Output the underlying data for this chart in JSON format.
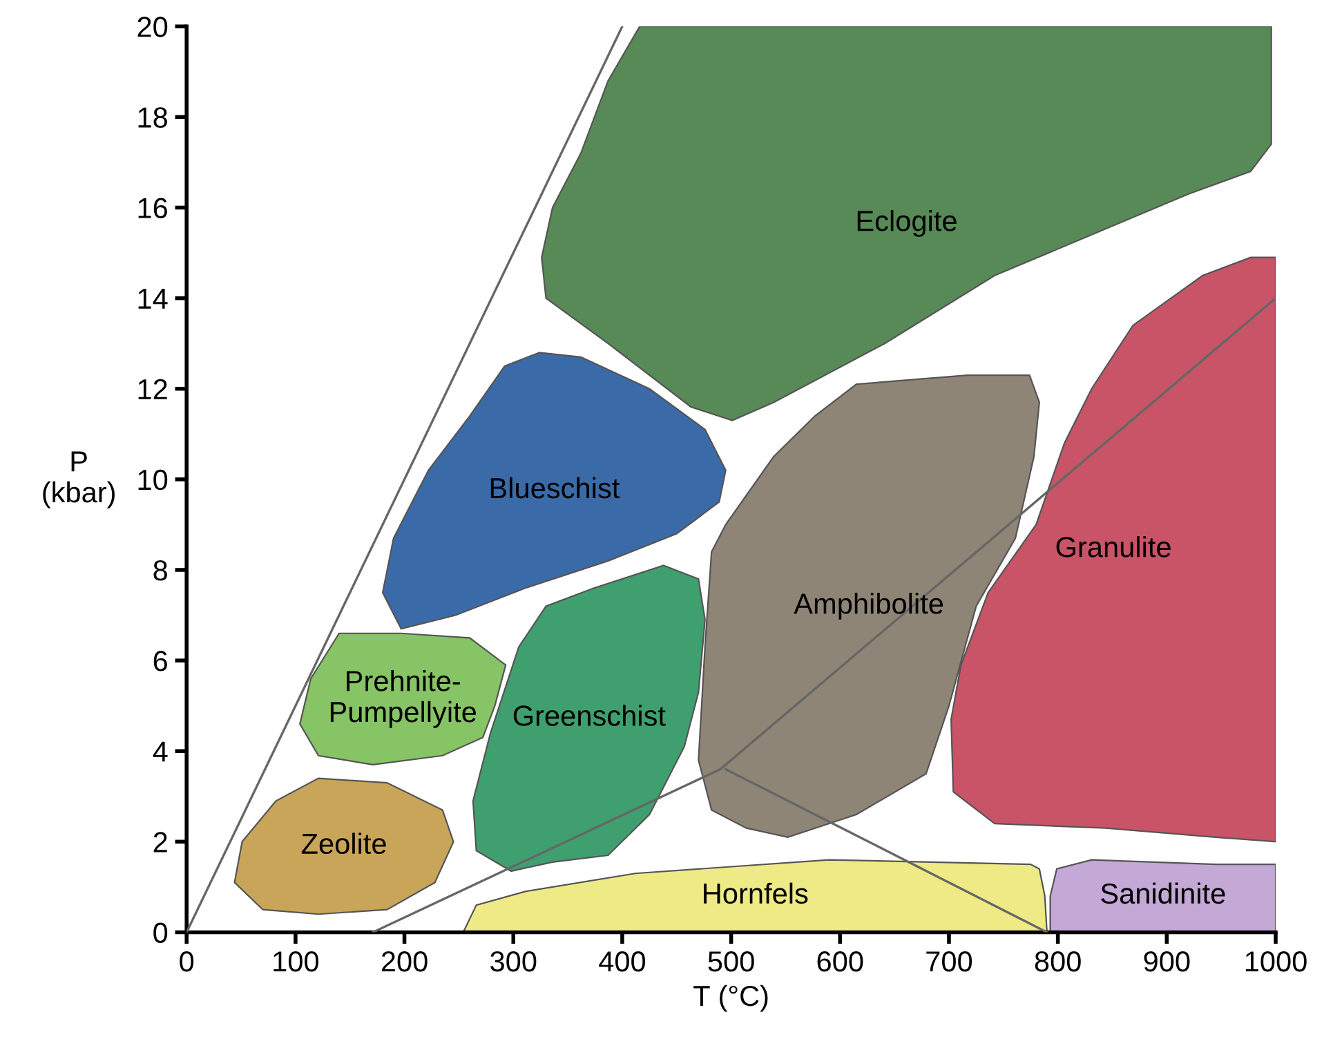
{
  "chart_data": {
    "type": "area",
    "xlabel": "T (°C)",
    "ylabel": "P\n(kbar)",
    "xlim": [
      0,
      1000
    ],
    "ylim": [
      0,
      20
    ],
    "xticks": [
      0,
      100,
      200,
      300,
      400,
      500,
      600,
      700,
      800,
      900,
      1000
    ],
    "yticks": [
      0,
      2,
      4,
      6,
      8,
      10,
      12,
      14,
      16,
      18,
      20
    ],
    "grid": false,
    "legend": false,
    "series": [
      {
        "type": "line",
        "color": "#666666",
        "x": [
          0,
          400
        ],
        "values": [
          0,
          20
        ]
      },
      {
        "type": "line",
        "color": "#666666",
        "x": [
          171,
          490,
          1000
        ],
        "values": [
          0,
          3.6,
          14
        ]
      },
      {
        "type": "line",
        "color": "#666666",
        "x": [
          495,
          790
        ],
        "values": [
          3.6,
          0
        ]
      },
      {
        "name": "Eclogite",
        "color": "#588a57",
        "x": [
          416,
          996,
          996,
          977,
          920,
          831,
          742,
          641,
          539,
          501,
          463,
          387,
          330,
          326,
          336,
          362,
          387
        ],
        "values": [
          20,
          20,
          17.4,
          16.8,
          16.3,
          15.4,
          14.5,
          13.0,
          11.7,
          11.3,
          11.6,
          13.0,
          14.0,
          14.9,
          16.0,
          17.2,
          18.8
        ]
      },
      {
        "name": "Blueschist",
        "color": "#3b6aa8",
        "x": [
          324,
          362,
          425,
          476,
          495,
          489,
          450,
          387,
          311,
          247,
          197,
          180,
          190,
          222,
          260,
          292
        ],
        "values": [
          12.8,
          12.7,
          12.0,
          11.1,
          10.2,
          9.5,
          8.8,
          8.2,
          7.6,
          7.0,
          6.7,
          7.5,
          8.7,
          10.2,
          11.4,
          12.5
        ]
      },
      {
        "name": "Prehnite-\nPumpellyite",
        "color": "#86c465",
        "x": [
          140,
          197,
          260,
          293,
          283,
          272,
          235,
          171,
          121,
          104,
          114
        ],
        "values": [
          6.6,
          6.6,
          6.5,
          5.9,
          5.0,
          4.3,
          3.9,
          3.7,
          3.9,
          4.6,
          5.6
        ]
      },
      {
        "name": "Zeolite",
        "color": "#c9a55a",
        "x": [
          121,
          184,
          235,
          245,
          228,
          184,
          121,
          70,
          44,
          51,
          82
        ],
        "values": [
          3.4,
          3.3,
          2.7,
          2.0,
          1.1,
          0.5,
          0.4,
          0.5,
          1.1,
          2.0,
          2.9
        ]
      },
      {
        "name": "Greenschist",
        "color": "#3f9f6f",
        "x": [
          438,
          470,
          476,
          470,
          457,
          425,
          387,
          336,
          298,
          266,
          263,
          279,
          305,
          330,
          374
        ],
        "values": [
          8.1,
          7.8,
          6.9,
          5.3,
          4.1,
          2.6,
          1.7,
          1.55,
          1.35,
          1.8,
          2.9,
          4.4,
          6.3,
          7.2,
          7.6
        ]
      },
      {
        "name": "Amphibolite",
        "color": "#8e8577",
        "x": [
          615,
          717,
          774,
          783,
          778,
          761,
          725,
          700,
          679,
          615,
          552,
          514,
          482,
          470,
          476,
          482,
          495,
          539,
          577
        ],
        "values": [
          12.1,
          12.3,
          12.3,
          11.7,
          10.5,
          8.7,
          7.2,
          5.0,
          3.5,
          2.6,
          2.1,
          2.3,
          2.7,
          3.8,
          6.3,
          8.4,
          9.0,
          10.5,
          11.4
        ]
      },
      {
        "name": "Granulite",
        "color": "#c95467",
        "x": [
          1000,
          1000,
          945,
          844,
          742,
          704,
          702,
          711,
          736,
          780,
          806,
          831,
          869,
          933,
          977
        ],
        "values": [
          14.9,
          2.0,
          2.1,
          2.3,
          2.4,
          3.1,
          4.7,
          5.9,
          7.5,
          9.0,
          10.8,
          12.0,
          13.4,
          14.5,
          14.9
        ]
      },
      {
        "name": "Hornfels",
        "color": "#eeea86",
        "x": [
          254,
          790,
          788,
          783,
          775,
          590,
          412,
          311,
          266
        ],
        "values": [
          0,
          0,
          0.8,
          1.4,
          1.5,
          1.6,
          1.3,
          0.9,
          0.6
        ]
      },
      {
        "name": "Sanidinite",
        "color": "#c4a8d6",
        "x": [
          793,
          1000,
          1000,
          945,
          831,
          799,
          793
        ],
        "values": [
          0,
          0,
          1.5,
          1.5,
          1.6,
          1.4,
          0.8
        ]
      }
    ]
  }
}
